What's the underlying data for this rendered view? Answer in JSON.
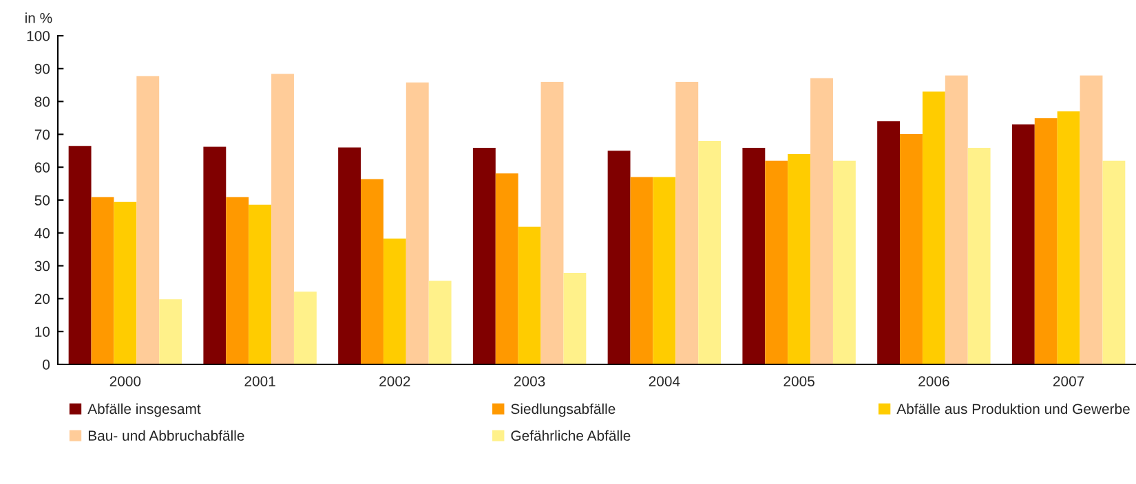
{
  "chart_data": {
    "type": "bar",
    "ylabel": "in %",
    "categories": [
      "2000",
      "2001",
      "2002",
      "2003",
      "2004",
      "2005",
      "2006",
      "2007"
    ],
    "series": [
      {
        "name": "Abfälle insgesamt",
        "color": "#800000",
        "values": [
          66.5,
          66.2,
          66.0,
          65.9,
          65.0,
          65.9,
          74.0,
          73.0
        ]
      },
      {
        "name": "Siedlungsabfälle",
        "color": "#ff9900",
        "values": [
          50.9,
          50.9,
          56.4,
          58.1,
          57.0,
          62.0,
          70.1,
          74.9
        ]
      },
      {
        "name": "Abfälle aus Produktion und Gewerbe",
        "color": "#ffcc00",
        "values": [
          49.4,
          48.6,
          38.3,
          41.9,
          57.0,
          64.0,
          83.0,
          77.0
        ]
      },
      {
        "name": "Bau- und Abbruchabfälle",
        "color": "#ffcc99",
        "values": [
          87.7,
          88.4,
          85.8,
          86.0,
          86.0,
          87.1,
          87.9,
          87.9
        ]
      },
      {
        "name": "Gefährliche Abfälle",
        "color": "#fff18a",
        "values": [
          19.8,
          22.1,
          25.4,
          27.8,
          68.0,
          62.0,
          65.9,
          62.0
        ]
      }
    ],
    "ylim": [
      0,
      100
    ],
    "yticks": [
      0,
      10,
      20,
      30,
      40,
      50,
      60,
      70,
      80,
      90,
      100
    ],
    "grid": false,
    "legend": "bottom"
  }
}
